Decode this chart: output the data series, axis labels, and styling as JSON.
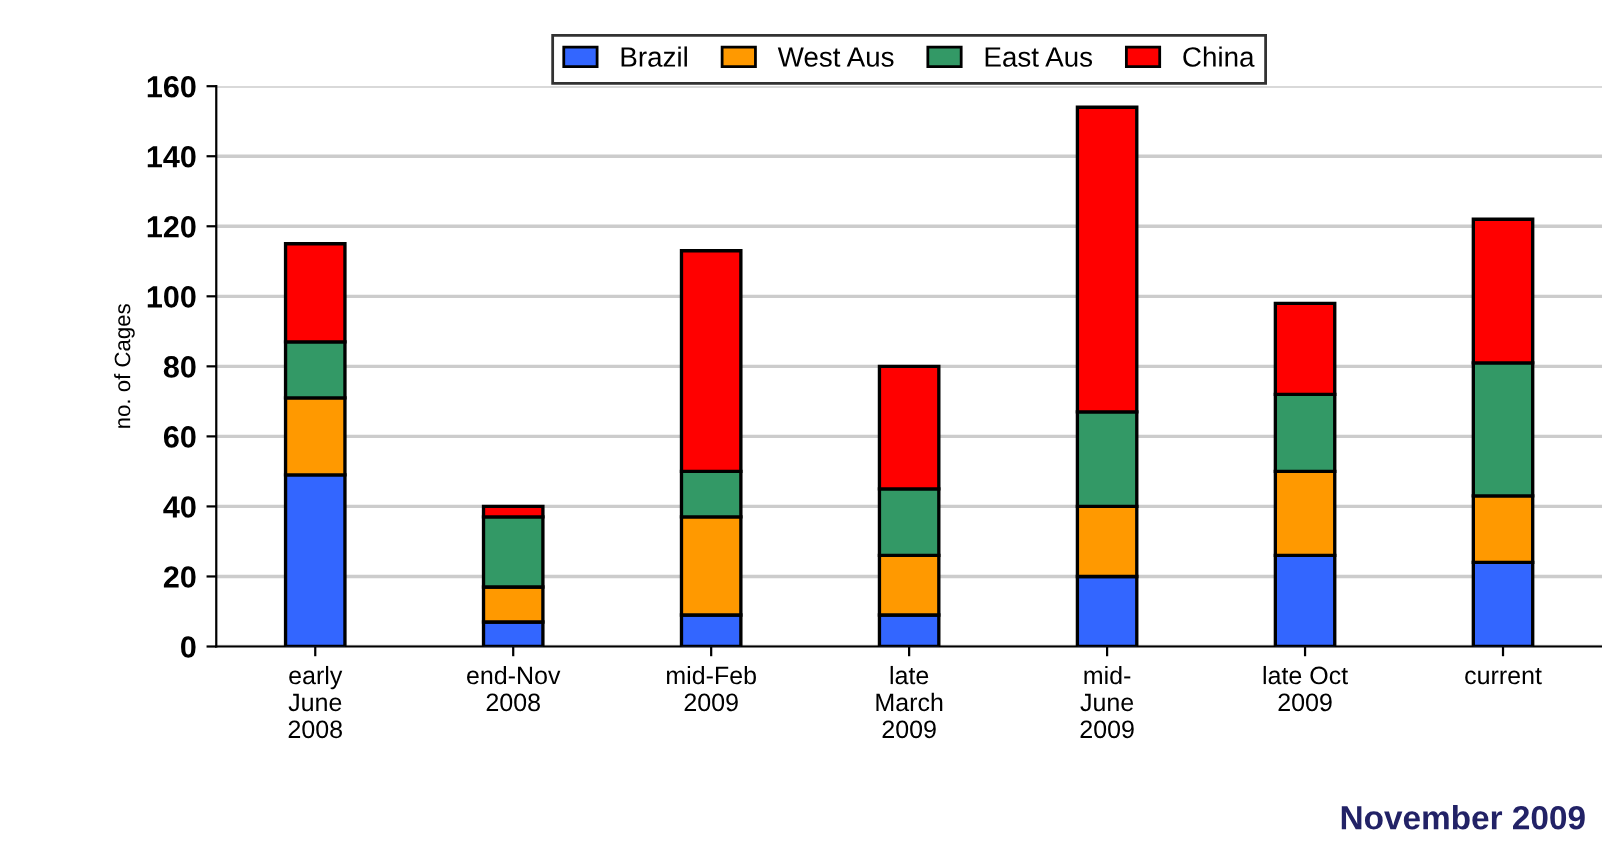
{
  "chart_data": {
    "type": "bar",
    "stacked": true,
    "ylabel": "no. of Cages",
    "categories": [
      "early\nJune\n2008",
      "end-Nov\n2008",
      "mid-Feb\n2009",
      "late\nMarch\n2009",
      "mid-\nJune\n2009",
      "late Oct\n2009",
      "current"
    ],
    "series": [
      {
        "name": "Brazil",
        "color": "#3366ff",
        "values": [
          49,
          7,
          9,
          9,
          20,
          26,
          24
        ]
      },
      {
        "name": "West Aus",
        "color": "#ff9900",
        "values": [
          22,
          10,
          28,
          17,
          20,
          24,
          19
        ]
      },
      {
        "name": "East Aus",
        "color": "#339966",
        "values": [
          16,
          20,
          13,
          19,
          27,
          22,
          38
        ]
      },
      {
        "name": "China",
        "color": "#ff0000",
        "values": [
          28,
          3,
          63,
          35,
          87,
          26,
          41
        ]
      }
    ],
    "ylim": [
      0,
      160
    ],
    "yticks": [
      0,
      20,
      40,
      60,
      80,
      100,
      120,
      140,
      160
    ],
    "grid": "y",
    "legend": "top",
    "annotations": [
      "November 2009"
    ]
  }
}
